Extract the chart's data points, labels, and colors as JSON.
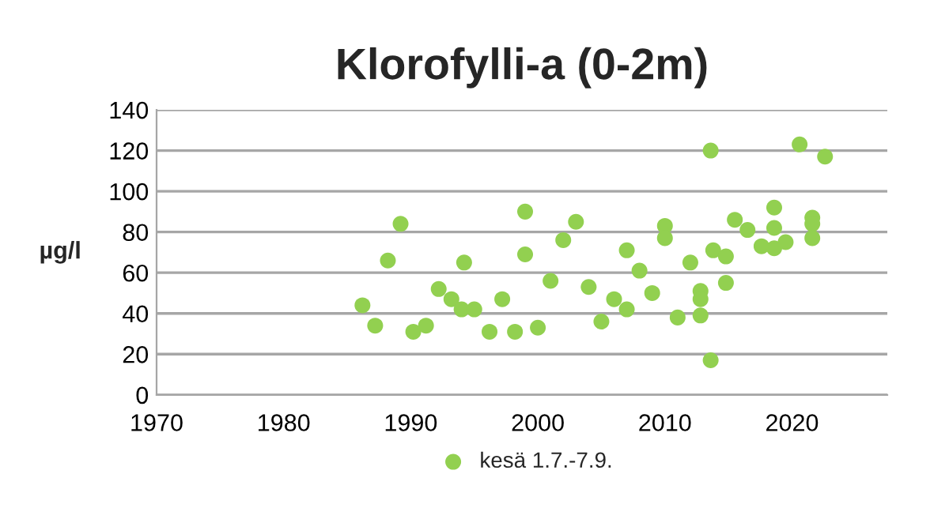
{
  "chart_data": {
    "type": "scatter",
    "title": "Klorofylli-a (0-2m)",
    "ylabel": "µg/l",
    "series": [
      {
        "name": "kesä 1.7.-7.9.",
        "color": "#92d050",
        "x": [
          1986.2,
          1987.2,
          1988.2,
          1989.2,
          1990.2,
          1991.2,
          1992.2,
          1993.2,
          1994,
          1994.2,
          1995,
          1996.2,
          1997.2,
          1998.2,
          1999,
          1999,
          2000,
          2001,
          2002,
          2003,
          2004,
          2005,
          2006,
          2007,
          2007,
          2008,
          2009,
          2010,
          2010,
          2011,
          2012,
          2012.8,
          2012.8,
          2012.8,
          2013.6,
          2013.6,
          2013.8,
          2014.8,
          2014.8,
          2015.5,
          2016.5,
          2017.6,
          2018.6,
          2018.6,
          2018.6,
          2019.5,
          2020.6,
          2021.6,
          2021.6,
          2021.6,
          2022.6
        ],
        "values": [
          44,
          34,
          66,
          84,
          31,
          34,
          52,
          47,
          42,
          65,
          42,
          31,
          47,
          31,
          90,
          69,
          33,
          56,
          76,
          85,
          53,
          36,
          47,
          42,
          71,
          61,
          50,
          83,
          77,
          38,
          65,
          51,
          47,
          39,
          120,
          17,
          71,
          68,
          55,
          86,
          81,
          73,
          92,
          82,
          72,
          75,
          123,
          87,
          84,
          77,
          117
        ]
      }
    ],
    "xlim": [
      1970,
      2027.5
    ],
    "xticks": [
      1970,
      1980,
      1990,
      2000,
      2010,
      2020
    ],
    "ylim": [
      0,
      140
    ],
    "yticks": [
      0,
      20,
      40,
      60,
      80,
      100,
      120,
      140
    ],
    "grid": "y",
    "legend": "bottom",
    "marker": "circle"
  }
}
